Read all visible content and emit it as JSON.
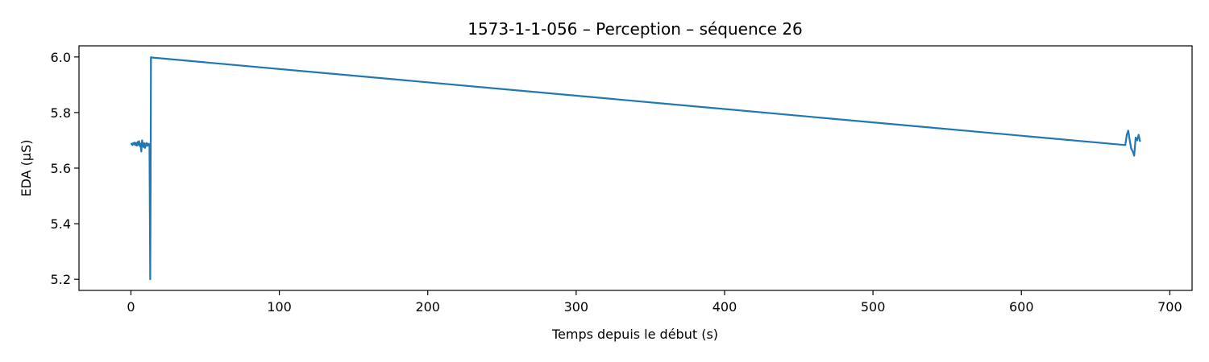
{
  "chart_data": {
    "type": "line",
    "title": "1573-1-1-056 – Perception – séquence 26",
    "xlabel": "Temps depuis le début (s)",
    "ylabel": "EDA (µS)",
    "xlim": [
      -35,
      715
    ],
    "ylim": [
      5.16,
      6.04
    ],
    "xticks": [
      0,
      100,
      200,
      300,
      400,
      500,
      600,
      700
    ],
    "yticks": [
      5.2,
      5.4,
      5.6,
      5.8,
      6.0
    ],
    "xtick_labels": [
      "0",
      "100",
      "200",
      "300",
      "400",
      "500",
      "600",
      "700"
    ],
    "ytick_labels": [
      "5.2",
      "5.4",
      "5.6",
      "5.8",
      "6.0"
    ],
    "grid": false,
    "line_color": "#1f77b4",
    "series": [
      {
        "x": [
          0,
          0.5,
          1,
          1.5,
          2,
          2.5,
          3,
          3.5,
          4,
          4.5,
          5,
          5.5,
          6,
          6.5,
          7,
          7.5,
          8,
          8.5,
          9,
          9.5,
          10,
          10.5,
          11,
          11.5,
          12,
          12.5,
          13,
          13.3,
          13.5,
          14,
          670,
          671,
          672,
          673,
          674,
          675,
          676,
          677,
          678,
          679,
          680
        ],
        "y": [
          5.685,
          5.688,
          5.683,
          5.69,
          5.686,
          5.692,
          5.683,
          5.69,
          5.681,
          5.694,
          5.684,
          5.697,
          5.679,
          5.688,
          5.66,
          5.7,
          5.686,
          5.676,
          5.69,
          5.673,
          5.684,
          5.69,
          5.68,
          5.688,
          5.682,
          5.686,
          5.2,
          5.6,
          5.999,
          5.998,
          5.683,
          5.72,
          5.735,
          5.7,
          5.67,
          5.66,
          5.645,
          5.71,
          5.7,
          5.72,
          5.695
        ]
      }
    ]
  }
}
